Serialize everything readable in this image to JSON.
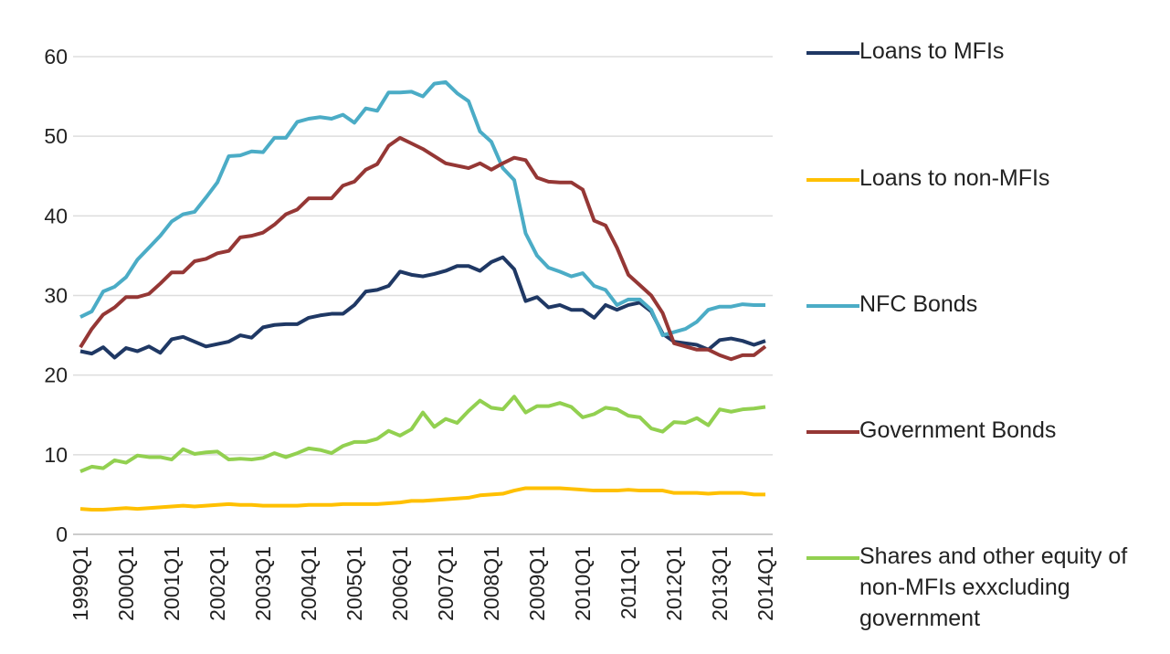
{
  "chart_data": {
    "type": "line",
    "categories": [
      "1999Q1",
      null,
      null,
      null,
      "2000Q1",
      null,
      null,
      null,
      "2001Q1",
      null,
      null,
      null,
      "2002Q1",
      null,
      null,
      null,
      "2003Q1",
      null,
      null,
      null,
      "2004Q1",
      null,
      null,
      null,
      "2005Q1",
      null,
      null,
      null,
      "2006Q1",
      null,
      null,
      null,
      "2007Q1",
      null,
      null,
      null,
      "2008Q1",
      null,
      null,
      null,
      "2009Q1",
      null,
      null,
      null,
      "2010Q1",
      null,
      null,
      null,
      "2011Q1",
      null,
      null,
      null,
      "2012Q1",
      null,
      null,
      null,
      "2013Q1",
      null,
      null,
      null,
      "2014Q1"
    ],
    "series": [
      {
        "name": "Loans to MFIs",
        "color": "#1f3864",
        "values": [
          23,
          22.7,
          23.5,
          22.2,
          23.4,
          23,
          23.6,
          22.8,
          24.5,
          24.8,
          24.2,
          23.6,
          23.9,
          24.2,
          25,
          24.7,
          26,
          26.3,
          26.4,
          26.4,
          27.2,
          27.5,
          27.7,
          27.7,
          28.8,
          30.5,
          30.7,
          31.2,
          33,
          32.6,
          32.4,
          32.7,
          33.1,
          33.7,
          33.7,
          33.1,
          34.2,
          34.8,
          33.3,
          29.3,
          29.8,
          28.5,
          28.8,
          28.2,
          28.2,
          27.2,
          28.8,
          28.2,
          28.8,
          29.1,
          28,
          25.2,
          24.2,
          24,
          23.8,
          23.2,
          24.4,
          24.6,
          24.3,
          23.8,
          24.3
        ]
      },
      {
        "name": "Loans to non-MFIs",
        "color": "#ffc000",
        "values": [
          3.2,
          3.1,
          3.1,
          3.2,
          3.3,
          3.2,
          3.3,
          3.4,
          3.5,
          3.6,
          3.5,
          3.6,
          3.7,
          3.8,
          3.7,
          3.7,
          3.6,
          3.6,
          3.6,
          3.6,
          3.7,
          3.7,
          3.7,
          3.8,
          3.8,
          3.8,
          3.8,
          3.9,
          4,
          4.2,
          4.2,
          4.3,
          4.4,
          4.5,
          4.6,
          4.9,
          5,
          5.1,
          5.5,
          5.8,
          5.8,
          5.8,
          5.8,
          5.7,
          5.6,
          5.5,
          5.5,
          5.5,
          5.6,
          5.5,
          5.5,
          5.5,
          5.2,
          5.2,
          5.2,
          5.1,
          5.2,
          5.2,
          5.2,
          5,
          5
        ]
      },
      {
        "name": "NFC Bonds",
        "color": "#4bacc6",
        "values": [
          27.3,
          28,
          30.5,
          31.1,
          32.3,
          34.5,
          36,
          37.5,
          39.3,
          40.2,
          40.5,
          42.3,
          44.2,
          47.5,
          47.6,
          48.1,
          48,
          49.8,
          49.8,
          51.8,
          52.2,
          52.4,
          52.2,
          52.7,
          51.7,
          53.5,
          53.2,
          55.5,
          55.5,
          55.6,
          55,
          56.6,
          56.8,
          55.4,
          54.4,
          50.6,
          49.3,
          46,
          44.5,
          37.8,
          35,
          33.5,
          33,
          32.4,
          32.8,
          31.2,
          30.7,
          28.8,
          29.5,
          29.5,
          28.2,
          25,
          25.4,
          25.8,
          26.7,
          28.2,
          28.6,
          28.6,
          28.9,
          28.8,
          28.8
        ]
      },
      {
        "name": "Government Bonds",
        "color": "#953735",
        "values": [
          23.5,
          25.8,
          27.6,
          28.5,
          29.8,
          29.8,
          30.2,
          31.5,
          32.9,
          32.9,
          34.3,
          34.6,
          35.3,
          35.6,
          37.3,
          37.5,
          37.9,
          38.9,
          40.2,
          40.8,
          42.2,
          42.2,
          42.2,
          43.8,
          44.3,
          45.8,
          46.5,
          48.8,
          49.8,
          49.1,
          48.4,
          47.5,
          46.6,
          46.3,
          46,
          46.6,
          45.8,
          46.6,
          47.3,
          47,
          44.8,
          44.3,
          44.2,
          44.2,
          43.3,
          39.4,
          38.8,
          36,
          32.6,
          31.3,
          30,
          27.8,
          24,
          23.6,
          23.2,
          23.2,
          22.5,
          22,
          22.5,
          22.5,
          23.6
        ]
      },
      {
        "name": "Shares and other equity of non-MFIs exxcluding government",
        "color": "#92d050",
        "values": [
          7.9,
          8.5,
          8.3,
          9.3,
          9,
          9.9,
          9.7,
          9.7,
          9.4,
          10.7,
          10.1,
          10.3,
          10.4,
          9.4,
          9.5,
          9.4,
          9.6,
          10.2,
          9.7,
          10.2,
          10.8,
          10.6,
          10.2,
          11.1,
          11.6,
          11.6,
          12,
          13,
          12.4,
          13.2,
          15.3,
          13.5,
          14.5,
          14,
          15.5,
          16.8,
          15.9,
          15.7,
          17.3,
          15.3,
          16.1,
          16.1,
          16.5,
          16,
          14.7,
          15.1,
          15.9,
          15.7,
          14.9,
          14.7,
          13.3,
          12.9,
          14.1,
          14,
          14.6,
          13.7,
          15.7,
          15.4,
          15.7,
          15.8,
          16
        ]
      }
    ],
    "ylim": [
      0,
      60
    ],
    "yticks": [
      0,
      10,
      20,
      30,
      40,
      50,
      60
    ],
    "grid": true,
    "legend": "right"
  }
}
